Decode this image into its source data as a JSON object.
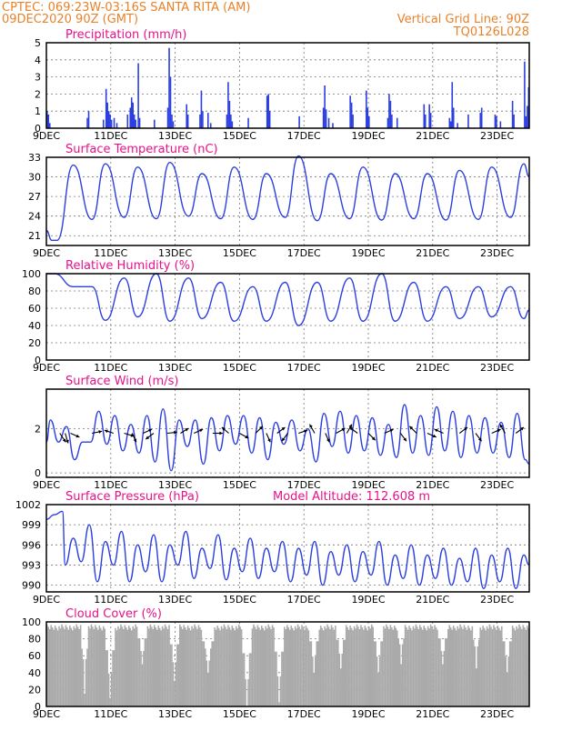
{
  "header": {
    "line1": "CPTEC:   069:23W-03:16S   SANTA RITA (AM)",
    "line2": "09DEC2020 90Z (GMT)",
    "right1": "Vertical Grid Line: 90Z",
    "right2": "TQ0126L028"
  },
  "model_altitude": "Model Altitude: 112.608  m",
  "colors": {
    "header": "#e8822a",
    "title": "#e8128a",
    "series": "#2c3fe0",
    "cloud": "#aaaaaa"
  },
  "chart_data": [
    {
      "type": "bar",
      "title": "Precipitation (mm/h)",
      "x_ticks": [
        "9DEC",
        "11DEC",
        "13DEC",
        "15DEC",
        "17DEC",
        "19DEC",
        "21DEC",
        "23DEC"
      ],
      "ylim": [
        0,
        5
      ],
      "y_ticks": [
        "0",
        "1",
        "2",
        "3",
        "4",
        "5"
      ],
      "x_range_hours": [
        0,
        360
      ],
      "bars": [
        [
          0,
          1.0
        ],
        [
          1,
          0.8
        ],
        [
          2,
          0.3
        ],
        [
          30,
          0.6
        ],
        [
          31,
          1.0
        ],
        [
          42,
          0.5
        ],
        [
          44,
          2.3
        ],
        [
          45,
          1.5
        ],
        [
          46,
          1.0
        ],
        [
          47,
          0.8
        ],
        [
          48,
          0.5
        ],
        [
          50,
          0.6
        ],
        [
          52,
          0.3
        ],
        [
          60,
          0.8
        ],
        [
          62,
          1.2
        ],
        [
          63,
          1.8
        ],
        [
          64,
          1.5
        ],
        [
          65,
          0.8
        ],
        [
          66,
          0.5
        ],
        [
          68,
          3.8
        ],
        [
          69,
          0.6
        ],
        [
          80,
          0.5
        ],
        [
          90,
          1.2
        ],
        [
          91,
          4.7
        ],
        [
          92,
          3.0
        ],
        [
          93,
          0.8
        ],
        [
          94,
          0.4
        ],
        [
          104,
          1.4
        ],
        [
          105,
          0.8
        ],
        [
          114,
          0.8
        ],
        [
          115,
          2.2
        ],
        [
          116,
          1.0
        ],
        [
          120,
          0.9
        ],
        [
          122,
          0.3
        ],
        [
          134,
          0.8
        ],
        [
          135,
          2.7
        ],
        [
          136,
          1.6
        ],
        [
          137,
          0.8
        ],
        [
          138,
          0.4
        ],
        [
          150,
          0.6
        ],
        [
          164,
          1.9
        ],
        [
          165,
          2.0
        ],
        [
          166,
          1.0
        ],
        [
          188,
          0.7
        ],
        [
          206,
          1.2
        ],
        [
          207,
          2.5
        ],
        [
          208,
          1.1
        ],
        [
          210,
          0.6
        ],
        [
          213,
          0.3
        ],
        [
          226,
          1.9
        ],
        [
          227,
          1.5
        ],
        [
          228,
          0.8
        ],
        [
          238,
          2.2
        ],
        [
          239,
          1.2
        ],
        [
          240,
          0.7
        ],
        [
          254,
          0.6
        ],
        [
          255,
          2.0
        ],
        [
          256,
          1.6
        ],
        [
          257,
          0.8
        ],
        [
          261,
          0.6
        ],
        [
          281,
          1.4
        ],
        [
          282,
          0.8
        ],
        [
          285,
          1.4
        ],
        [
          286,
          0.9
        ],
        [
          300,
          0.6
        ],
        [
          301,
          0.4
        ],
        [
          302,
          2.7
        ],
        [
          303,
          1.2
        ],
        [
          306,
          0.3
        ],
        [
          314,
          0.8
        ],
        [
          323,
          0.9
        ],
        [
          324,
          1.2
        ],
        [
          334,
          0.8
        ],
        [
          335,
          0.7
        ],
        [
          338,
          0.4
        ],
        [
          347,
          1.6
        ],
        [
          348,
          0.8
        ],
        [
          357,
          0.7
        ],
        [
          358,
          1.3
        ],
        [
          359,
          2.4
        ],
        [
          356,
          3.9
        ]
      ]
    },
    {
      "type": "line",
      "title": "Surface Temperature (nC)",
      "x_ticks": [
        "9DEC",
        "11DEC",
        "13DEC",
        "15DEC",
        "17DEC",
        "19DEC",
        "21DEC",
        "23DEC"
      ],
      "ylim": [
        19.5,
        33
      ],
      "y_ticks": [
        "21",
        "24",
        "27",
        "30",
        "33"
      ],
      "x_range_hours": [
        0,
        360
      ],
      "daily_max": [
        21.9,
        32.0,
        31.5,
        32.2,
        30.5,
        31.5,
        30.5,
        33.2,
        30.5,
        31.5,
        30.5,
        30.5,
        31.0,
        31.5,
        32.0
      ],
      "daily_min": [
        20.3,
        23.5,
        23.8,
        23.6,
        24.0,
        23.6,
        23.5,
        23.8,
        23.3,
        23.6,
        23.4,
        23.6,
        23.4,
        23.5,
        23.8
      ],
      "end_value": 30.0
    },
    {
      "type": "line",
      "title": "Relative Humidity (%)",
      "x_ticks": [
        "9DEC",
        "11DEC",
        "13DEC",
        "15DEC",
        "17DEC",
        "19DEC",
        "21DEC",
        "23DEC"
      ],
      "ylim": [
        0,
        100
      ],
      "y_ticks": [
        "0",
        "20",
        "40",
        "60",
        "80",
        "100"
      ],
      "x_range_hours": [
        0,
        360
      ],
      "daily_max": [
        100,
        85,
        95,
        100,
        95,
        90,
        85,
        90,
        90,
        95,
        100,
        90,
        85,
        85,
        85
      ],
      "daily_min": [
        85,
        46,
        50,
        45,
        48,
        45,
        45,
        40,
        45,
        45,
        45,
        45,
        48,
        50,
        48
      ],
      "end_value": 58
    },
    {
      "type": "line",
      "title": "Surface Wind (m/s)",
      "x_ticks": [
        "9DEC",
        "11DEC",
        "13DEC",
        "15DEC",
        "17DEC",
        "19DEC",
        "21DEC",
        "23DEC"
      ],
      "ylim": [
        -0.2,
        3.8
      ],
      "y_ticks": [
        "0",
        "2"
      ],
      "x_range_hours": [
        0,
        360
      ],
      "speed_peaks": [
        2.4,
        2.1,
        1.4,
        2.8,
        2.6,
        2.2,
        2.6,
        2.9,
        2.4,
        2.4,
        2.5,
        2.6,
        2.6,
        2.5,
        2.3,
        2.4,
        2.0,
        2.7,
        2.8,
        2.6,
        2.5,
        2.2,
        3.1,
        2.6,
        3.0,
        2.8,
        2.6,
        2.5,
        2.3,
        2.7,
        2.9
      ],
      "speed_troughs": [
        1.4,
        0.6,
        1.4,
        1.3,
        1.0,
        0.9,
        0.5,
        0.1,
        1.2,
        0.4,
        1.0,
        1.3,
        0.9,
        0.6,
        1.3,
        1.0,
        0.5,
        1.2,
        0.9,
        1.0,
        0.8,
        0.7,
        0.9,
        0.8,
        1.0,
        0.7,
        0.9,
        0.9,
        0.7,
        0.6,
        0.5
      ],
      "vectors": [
        [
          10,
          0.6,
          -0.9
        ],
        [
          14,
          0.3,
          -1.0
        ],
        [
          18,
          0.9,
          -0.4
        ],
        [
          34,
          1.0,
          0.2
        ],
        [
          50,
          -0.9,
          0.3
        ],
        [
          58,
          1.0,
          -0.3
        ],
        [
          64,
          0.4,
          -0.9
        ],
        [
          72,
          0.9,
          0.4
        ],
        [
          80,
          -0.8,
          -0.6
        ],
        [
          90,
          1.0,
          0.1
        ],
        [
          100,
          0.8,
          0.5
        ],
        [
          110,
          0.9,
          0.4
        ],
        [
          124,
          1.0,
          0.0
        ],
        [
          136,
          -0.7,
          0.6
        ],
        [
          144,
          0.9,
          -0.5
        ],
        [
          156,
          0.7,
          0.7
        ],
        [
          164,
          0.4,
          -0.9
        ],
        [
          172,
          0.8,
          0.6
        ],
        [
          180,
          -0.6,
          -0.8
        ],
        [
          188,
          0.9,
          0.3
        ],
        [
          200,
          -0.5,
          0.9
        ],
        [
          208,
          0.4,
          -0.9
        ],
        [
          216,
          0.9,
          0.5
        ],
        [
          224,
          0.5,
          0.9
        ],
        [
          232,
          -0.8,
          0.6
        ],
        [
          240,
          0.7,
          -0.7
        ],
        [
          252,
          0.9,
          0.4
        ],
        [
          264,
          0.6,
          -0.8
        ],
        [
          276,
          -0.7,
          0.7
        ],
        [
          284,
          0.9,
          -0.4
        ],
        [
          296,
          -0.9,
          0.4
        ],
        [
          308,
          0.8,
          0.6
        ],
        [
          320,
          0.6,
          -0.8
        ],
        [
          332,
          0.9,
          0.4
        ],
        [
          342,
          -0.5,
          0.9
        ],
        [
          350,
          0.8,
          0.6
        ]
      ]
    },
    {
      "type": "line",
      "title": "Surface Pressure (hPa)",
      "x_ticks": [
        "9DEC",
        "11DEC",
        "13DEC",
        "15DEC",
        "17DEC",
        "19DEC",
        "21DEC",
        "23DEC"
      ],
      "ylim": [
        989,
        1002
      ],
      "y_ticks": [
        "990",
        "993",
        "996",
        "999",
        "1002"
      ],
      "x_range_hours": [
        0,
        360
      ],
      "halfday_max": [
        1000.5,
        997.0,
        999.0,
        996.5,
        998.0,
        996.0,
        997.5,
        996.0,
        998.0,
        995.5,
        997.5,
        995.5,
        997.0,
        995.5,
        996.5,
        995.5,
        996.5,
        995.0,
        996.0,
        995.0,
        996.5,
        994.5,
        996.0,
        994.5,
        995.5,
        994.0,
        995.5,
        994.5,
        995.5,
        994.5,
        995.0
      ],
      "halfday_min": [
        1000.0,
        993.0,
        993.5,
        990.5,
        993.0,
        990.5,
        992.0,
        990.5,
        993.0,
        991.0,
        992.5,
        990.8,
        992.0,
        991.0,
        992.0,
        990.5,
        991.5,
        990.0,
        991.5,
        990.5,
        991.5,
        990.0,
        991.0,
        990.0,
        991.0,
        990.0,
        990.5,
        989.5,
        990.5,
        989.5,
        989.0
      ],
      "end_value": 993.0
    },
    {
      "type": "bar",
      "title": "Cloud Cover (%)",
      "x_ticks": [
        "9DEC",
        "11DEC",
        "13DEC",
        "15DEC",
        "17DEC",
        "19DEC",
        "21DEC",
        "23DEC"
      ],
      "ylim": [
        0,
        100
      ],
      "y_ticks": [
        "0",
        "20",
        "40",
        "60",
        "80",
        "100"
      ],
      "x_range_hours": [
        0,
        360
      ],
      "typical_value": 97,
      "dips": [
        [
          26,
          30,
          15
        ],
        [
          44,
          50,
          10
        ],
        [
          68,
          74,
          50
        ],
        [
          92,
          98,
          30
        ],
        [
          116,
          124,
          40
        ],
        [
          146,
          152,
          0
        ],
        [
          170,
          176,
          5
        ],
        [
          196,
          202,
          40
        ],
        [
          216,
          222,
          45
        ],
        [
          244,
          250,
          40
        ],
        [
          262,
          266,
          50
        ],
        [
          292,
          298,
          50
        ],
        [
          318,
          322,
          45
        ],
        [
          340,
          346,
          40
        ]
      ]
    }
  ]
}
